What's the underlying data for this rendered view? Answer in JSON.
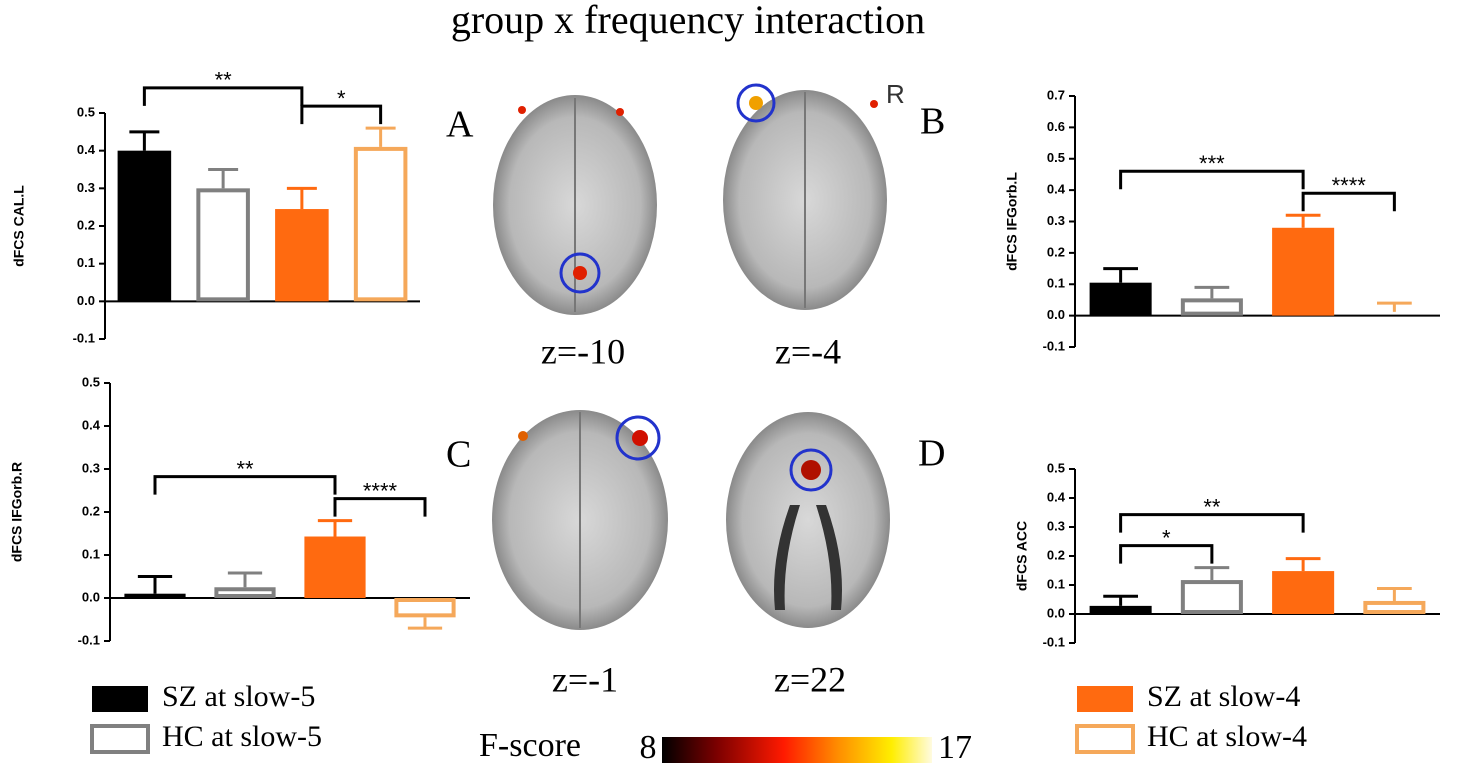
{
  "title": "group  x  frequency interaction",
  "legend": [
    {
      "name": "SZ at slow-5",
      "color": "#000000",
      "filled": true
    },
    {
      "name": "HC at slow-5",
      "color": "#808080",
      "filled": false
    },
    {
      "name": "SZ at slow-4",
      "color": "#ff6a10",
      "filled": true
    },
    {
      "name": "HC at slow-4",
      "color": "#f5a85a",
      "filled": false
    }
  ],
  "slices": [
    "z=-10",
    "z=-4",
    "z=-1",
    "z=22"
  ],
  "orientation": "R",
  "colorbar": {
    "label": "F-score",
    "min": 8,
    "max": 17
  },
  "chart_data": [
    {
      "type": "bar",
      "panel": "A",
      "ylabel": "dFCS CAL.L",
      "values": [
        0.4,
        0.3,
        0.245,
        0.41
      ],
      "errors": [
        0.05,
        0.05,
        0.055,
        0.05
      ],
      "ylim": [
        -0.1,
        0.5
      ],
      "yticks": [
        -0.1,
        {
          "value": 0,
          "label": "0.0"
        },
        0.1,
        0.2,
        0.3,
        0.4,
        0.5
      ],
      "annotations": [
        {
          "text": "**",
          "from": 0,
          "to": 2
        },
        {
          "text": "*",
          "from": 2,
          "to": 3
        }
      ]
    },
    {
      "type": "bar",
      "panel": "B",
      "ylabel": "dFCS IFGorb.L",
      "values": [
        0.105,
        0.055,
        0.28,
        0.012
      ],
      "errors": [
        0.045,
        0.035,
        0.04,
        0.028
      ],
      "ylim": [
        -0.1,
        0.7
      ],
      "yticks": [
        -0.1,
        {
          "value": 0,
          "label": "0.0"
        },
        0.1,
        0.2,
        0.3,
        0.4,
        0.5,
        0.6,
        0.7
      ],
      "annotations": [
        {
          "text": "***",
          "from": 0,
          "to": 2
        },
        {
          "text": "****",
          "from": 2,
          "to": 3
        }
      ]
    },
    {
      "type": "bar",
      "panel": "C",
      "ylabel": "dFCS IFGorb.R",
      "values": [
        0.01,
        0.025,
        0.143,
        -0.045
      ],
      "errors": [
        0.04,
        0.033,
        0.037,
        0.025
      ],
      "ylim": [
        -0.1,
        0.5
      ],
      "yticks": [
        -0.1,
        {
          "value": 0,
          "label": "0.0"
        },
        0.1,
        0.2,
        0.3,
        0.4,
        0.5
      ],
      "annotations": [
        {
          "text": "**",
          "from": 0,
          "to": 2
        },
        {
          "text": "****",
          "from": 2,
          "to": 3
        }
      ]
    },
    {
      "type": "bar",
      "panel": "D",
      "ylabel": "dFCS ACC",
      "values": [
        0.028,
        0.117,
        0.148,
        0.045
      ],
      "errors": [
        0.033,
        0.043,
        0.043,
        0.043
      ],
      "ylim": [
        -0.1,
        0.5
      ],
      "yticks": [
        -0.1,
        {
          "value": 0,
          "label": "0.0"
        },
        0.1,
        0.2,
        0.3,
        0.4,
        0.5
      ],
      "annotations": [
        {
          "text": "*",
          "from": 0,
          "to": 1
        },
        {
          "text": "**",
          "from": 0,
          "to": 2
        }
      ]
    }
  ]
}
